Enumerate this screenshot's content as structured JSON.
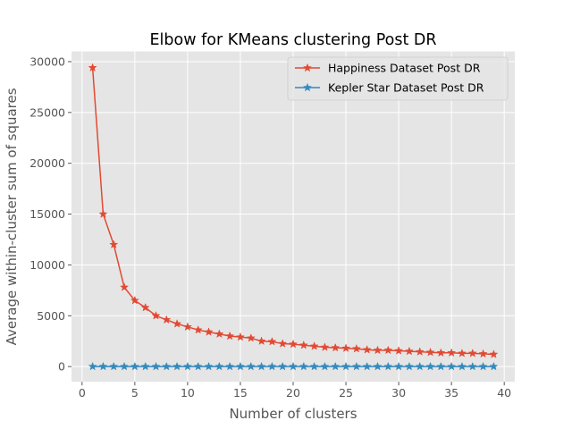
{
  "chart_data": {
    "type": "line",
    "title": "Elbow for KMeans clustering Post DR",
    "xlabel": "Number of clusters",
    "ylabel": "Average within-cluster sum of squares",
    "xlim": [
      -1,
      41
    ],
    "ylim": [
      -1500,
      31000
    ],
    "xticks": [
      0,
      5,
      10,
      15,
      20,
      25,
      30,
      35,
      40
    ],
    "yticks": [
      0,
      5000,
      10000,
      15000,
      20000,
      25000,
      30000
    ],
    "grid": true,
    "legend_position": "top-right",
    "x": [
      1,
      2,
      3,
      4,
      5,
      6,
      7,
      8,
      9,
      10,
      11,
      12,
      13,
      14,
      15,
      16,
      17,
      18,
      19,
      20,
      21,
      22,
      23,
      24,
      25,
      26,
      27,
      28,
      29,
      30,
      31,
      32,
      33,
      34,
      35,
      36,
      37,
      38,
      39
    ],
    "series": [
      {
        "name": "Happiness Dataset Post DR",
        "color": "#E24A33",
        "marker": "star",
        "values": [
          29400,
          15000,
          12000,
          7800,
          6500,
          5800,
          5000,
          4600,
          4200,
          3900,
          3600,
          3400,
          3200,
          3000,
          2900,
          2800,
          2500,
          2450,
          2250,
          2200,
          2100,
          2000,
          1900,
          1850,
          1800,
          1750,
          1650,
          1600,
          1600,
          1550,
          1500,
          1450,
          1400,
          1350,
          1350,
          1300,
          1300,
          1250,
          1200
        ]
      },
      {
        "name": "Kepler Star Dataset Post DR",
        "color": "#348ABD",
        "marker": "star",
        "values": [
          5,
          4,
          3,
          3,
          3,
          3,
          2,
          2,
          2,
          2,
          2,
          2,
          2,
          2,
          2,
          2,
          2,
          2,
          2,
          2,
          1,
          1,
          1,
          1,
          1,
          1,
          1,
          1,
          1,
          1,
          1,
          1,
          1,
          1,
          1,
          1,
          1,
          1,
          1
        ]
      }
    ]
  }
}
